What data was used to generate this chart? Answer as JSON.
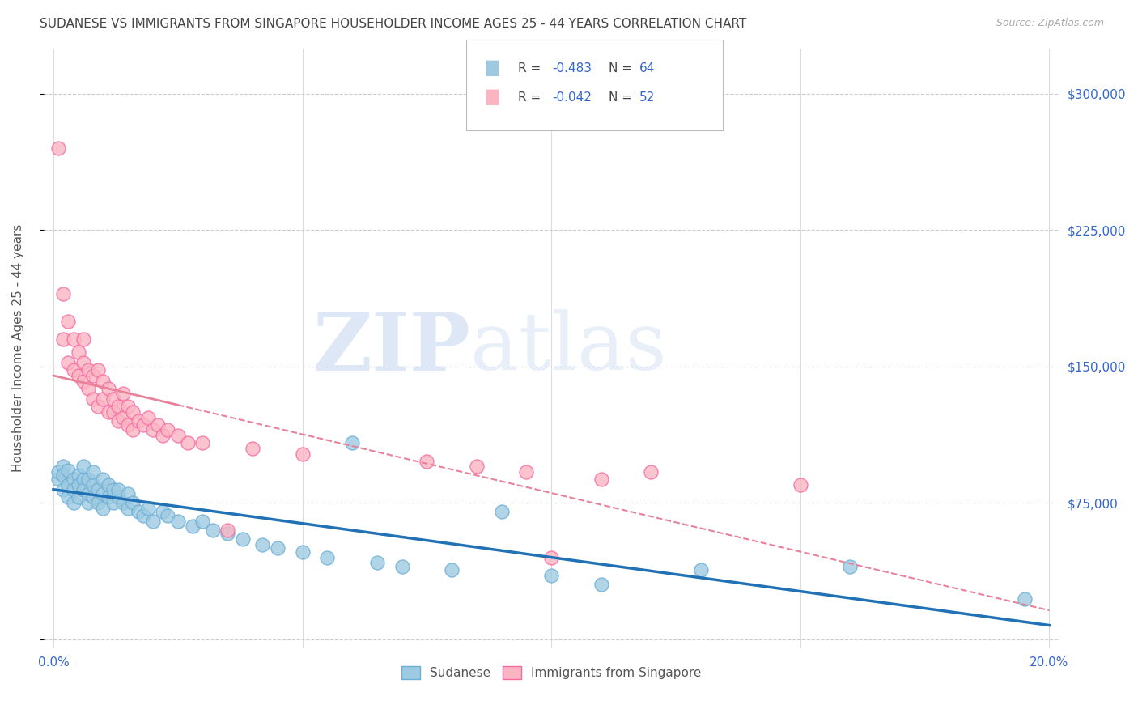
{
  "title": "SUDANESE VS IMMIGRANTS FROM SINGAPORE HOUSEHOLDER INCOME AGES 25 - 44 YEARS CORRELATION CHART",
  "source": "Source: ZipAtlas.com",
  "ylabel": "Householder Income Ages 25 - 44 years",
  "xlim": [
    -0.002,
    0.202
  ],
  "ylim": [
    -5000,
    325000
  ],
  "yticks": [
    0,
    75000,
    150000,
    225000,
    300000
  ],
  "ytick_labels": [
    "",
    "$75,000",
    "$150,000",
    "$225,000",
    "$300,000"
  ],
  "xtick_positions": [
    0.0,
    0.05,
    0.1,
    0.15,
    0.2
  ],
  "xtick_labels": [
    "0.0%",
    "",
    "",
    "",
    "20.0%"
  ],
  "watermark_zip": "ZIP",
  "watermark_atlas": "atlas",
  "blue_color": "#9ecae1",
  "pink_color": "#fbb4c2",
  "blue_edge_color": "#6baed6",
  "pink_edge_color": "#f768a1",
  "blue_line_color": "#2171b5",
  "pink_line_color": "#e8829a",
  "title_color": "#444444",
  "axis_label_color": "#555555",
  "tick_color": "#3366cc",
  "grid_color": "#cccccc",
  "sudanese_x": [
    0.001,
    0.001,
    0.002,
    0.002,
    0.002,
    0.003,
    0.003,
    0.003,
    0.004,
    0.004,
    0.004,
    0.005,
    0.005,
    0.005,
    0.006,
    0.006,
    0.006,
    0.007,
    0.007,
    0.007,
    0.008,
    0.008,
    0.008,
    0.009,
    0.009,
    0.01,
    0.01,
    0.01,
    0.011,
    0.011,
    0.012,
    0.012,
    0.013,
    0.013,
    0.014,
    0.015,
    0.015,
    0.016,
    0.017,
    0.018,
    0.019,
    0.02,
    0.022,
    0.023,
    0.025,
    0.028,
    0.03,
    0.032,
    0.035,
    0.038,
    0.042,
    0.045,
    0.05,
    0.055,
    0.06,
    0.065,
    0.07,
    0.08,
    0.09,
    0.1,
    0.11,
    0.13,
    0.16,
    0.195
  ],
  "sudanese_y": [
    88000,
    92000,
    95000,
    82000,
    90000,
    85000,
    78000,
    93000,
    88000,
    82000,
    75000,
    90000,
    85000,
    78000,
    88000,
    82000,
    95000,
    75000,
    80000,
    88000,
    85000,
    78000,
    92000,
    75000,
    82000,
    88000,
    80000,
    72000,
    85000,
    78000,
    82000,
    75000,
    78000,
    82000,
    75000,
    72000,
    80000,
    75000,
    70000,
    68000,
    72000,
    65000,
    70000,
    68000,
    65000,
    62000,
    65000,
    60000,
    58000,
    55000,
    52000,
    50000,
    48000,
    45000,
    108000,
    42000,
    40000,
    38000,
    70000,
    35000,
    30000,
    38000,
    40000,
    22000
  ],
  "singapore_x": [
    0.001,
    0.002,
    0.002,
    0.003,
    0.003,
    0.004,
    0.004,
    0.005,
    0.005,
    0.006,
    0.006,
    0.006,
    0.007,
    0.007,
    0.008,
    0.008,
    0.009,
    0.009,
    0.01,
    0.01,
    0.011,
    0.011,
    0.012,
    0.012,
    0.013,
    0.013,
    0.014,
    0.014,
    0.015,
    0.015,
    0.016,
    0.016,
    0.017,
    0.018,
    0.019,
    0.02,
    0.021,
    0.022,
    0.023,
    0.025,
    0.027,
    0.03,
    0.035,
    0.04,
    0.05,
    0.075,
    0.085,
    0.095,
    0.1,
    0.11,
    0.12,
    0.15
  ],
  "singapore_y": [
    270000,
    190000,
    165000,
    152000,
    175000,
    148000,
    165000,
    158000,
    145000,
    152000,
    142000,
    165000,
    148000,
    138000,
    145000,
    132000,
    148000,
    128000,
    142000,
    132000,
    138000,
    125000,
    132000,
    125000,
    128000,
    120000,
    135000,
    122000,
    128000,
    118000,
    125000,
    115000,
    120000,
    118000,
    122000,
    115000,
    118000,
    112000,
    115000,
    112000,
    108000,
    108000,
    60000,
    105000,
    102000,
    98000,
    95000,
    92000,
    45000,
    88000,
    92000,
    85000
  ]
}
